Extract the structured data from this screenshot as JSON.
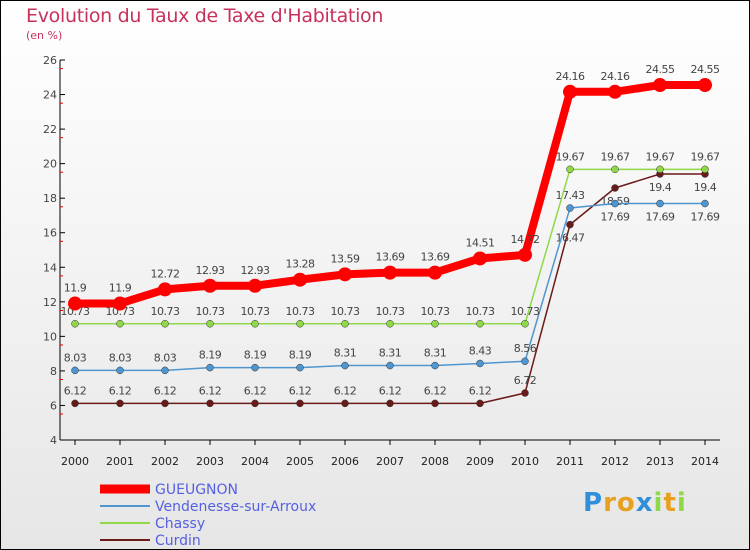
{
  "chart_data": {
    "type": "line",
    "title": "Evolution du Taux de Taxe d'Habitation",
    "subtitle": "(en %)",
    "xlabel": "",
    "ylabel": "",
    "ylim": [
      4,
      26
    ],
    "yticks": [
      4,
      6,
      8,
      10,
      12,
      14,
      16,
      18,
      20,
      22,
      24,
      26
    ],
    "x": [
      2000,
      2001,
      2002,
      2003,
      2004,
      2005,
      2006,
      2007,
      2008,
      2009,
      2010,
      2011,
      2012,
      2013,
      2014
    ],
    "legend_position": "bottom-left",
    "series": [
      {
        "name": "GUEUGNON",
        "color": "#ff0000",
        "values": [
          11.9,
          11.9,
          12.72,
          12.93,
          12.93,
          13.28,
          13.59,
          13.69,
          13.69,
          14.51,
          14.72,
          24.16,
          24.16,
          24.55,
          24.55
        ]
      },
      {
        "name": "Vendenesse-sur-Arroux",
        "color": "#4f95cf",
        "values": [
          8.03,
          8.03,
          8.03,
          8.19,
          8.19,
          8.19,
          8.31,
          8.31,
          8.31,
          8.43,
          8.56,
          17.43,
          17.69,
          17.69,
          17.69
        ]
      },
      {
        "name": "Chassy",
        "color": "#8fd84a",
        "values": [
          10.73,
          10.73,
          10.73,
          10.73,
          10.73,
          10.73,
          10.73,
          10.73,
          10.73,
          10.73,
          10.73,
          19.67,
          19.67,
          19.67,
          19.67
        ]
      },
      {
        "name": "Curdin",
        "color": "#6b1a1a",
        "values": [
          6.12,
          6.12,
          6.12,
          6.12,
          6.12,
          6.12,
          6.12,
          6.12,
          6.12,
          6.12,
          6.72,
          16.47,
          18.59,
          19.4,
          19.4
        ]
      }
    ]
  },
  "logo": "Proxiti"
}
